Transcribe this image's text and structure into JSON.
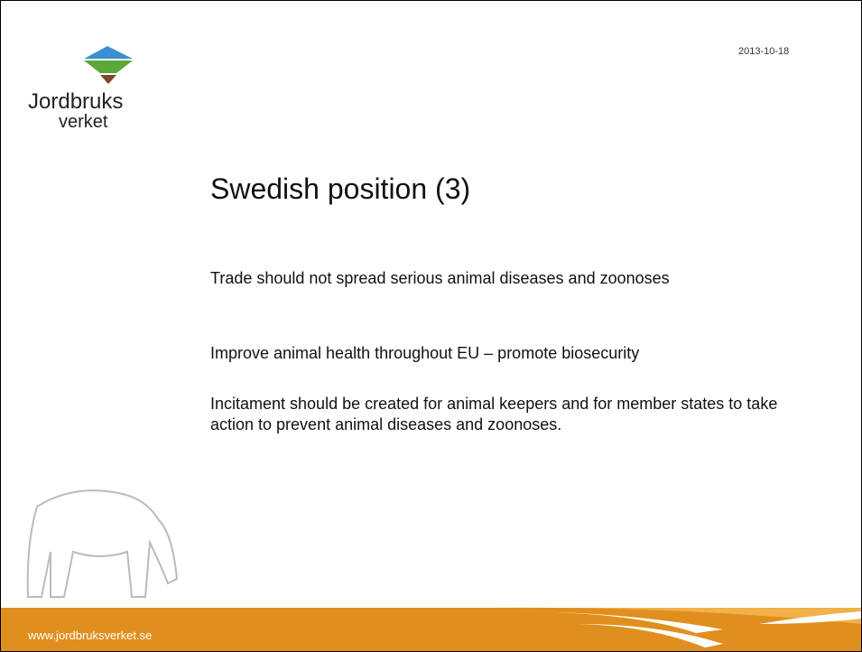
{
  "logo": {
    "line1": "Jordbruks",
    "line2": "verket"
  },
  "date": "2013-10-18",
  "title": "Swedish position (3)",
  "bullets": [
    "Trade should not spread serious animal diseases and zoonoses",
    "Improve animal health throughout EU – promote biosecurity",
    "Incitament should be created for animal keepers and for member states to take action to prevent animal diseases and zoonoses."
  ],
  "footer": {
    "url": "www.jordbruksverket.se"
  }
}
